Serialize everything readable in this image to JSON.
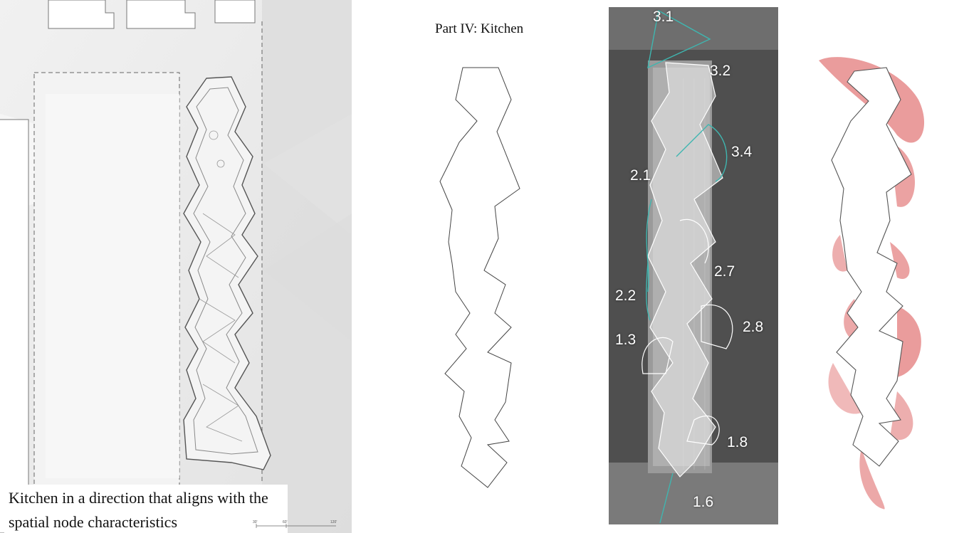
{
  "site_plan": {
    "caption": "Kitchen in a direction that aligns with the spatial node characteristics",
    "scale_labels": [
      "30'",
      "60'",
      "120'"
    ]
  },
  "outline": {
    "title": "Part IV: Kitchen"
  },
  "photo": {
    "node_labels": [
      "3.1",
      "3.2",
      "3.4",
      "2.1",
      "2.7",
      "2.2",
      "2.8",
      "1.3",
      "1.8",
      "1.6"
    ]
  },
  "colors": {
    "teal_arc": "#3fb6b0",
    "pink_shadow": "#e68b8b",
    "plan_bg": "#ececec",
    "photo_bg": "#5a5a5a"
  }
}
